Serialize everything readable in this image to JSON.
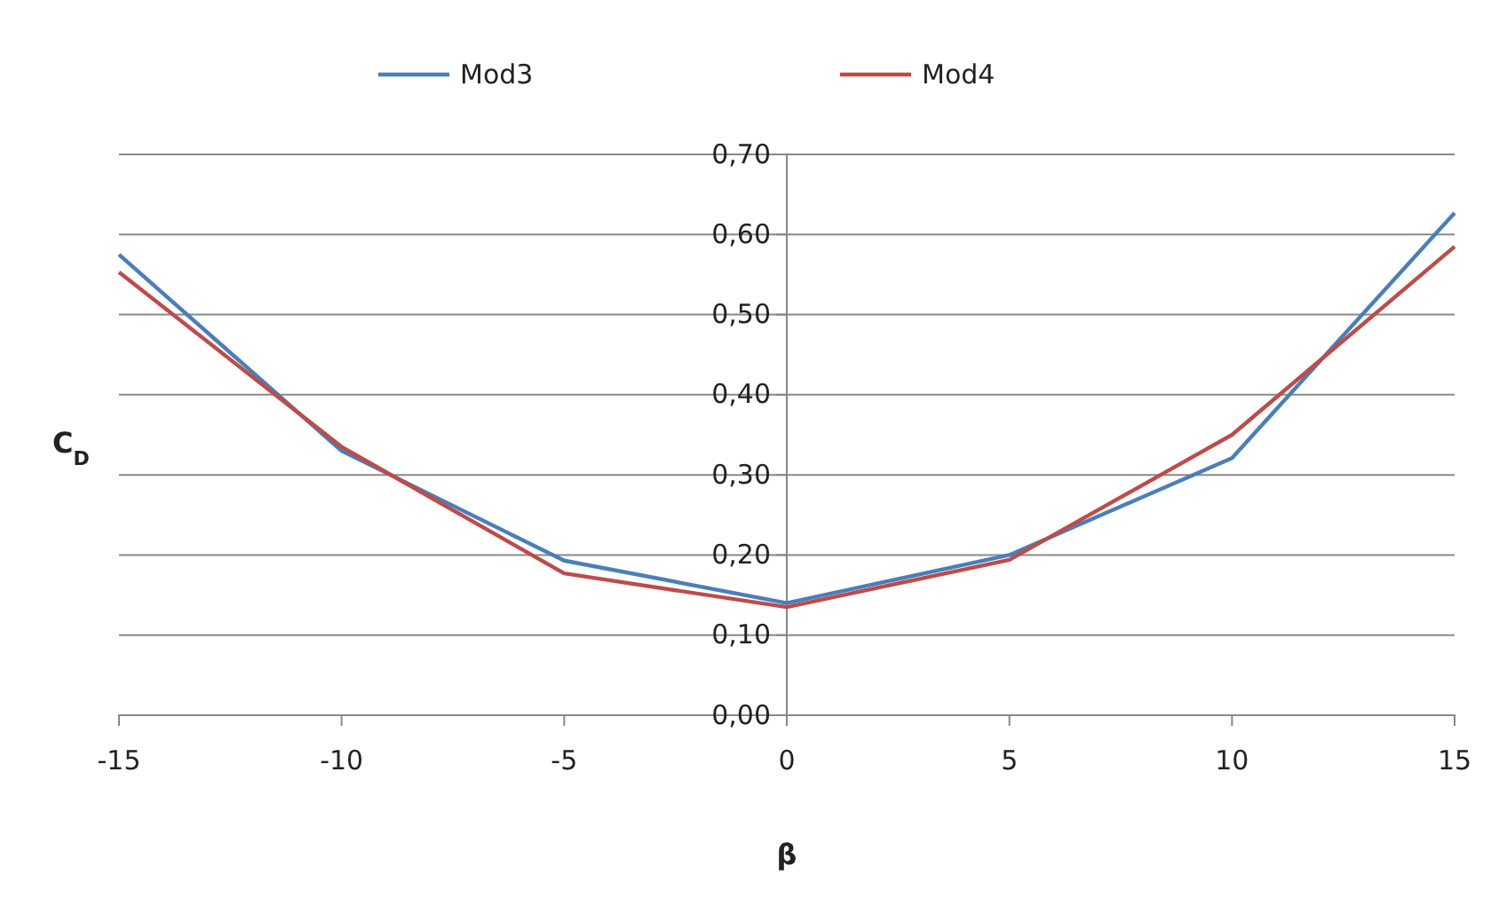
{
  "chart_data": {
    "type": "line",
    "xlabel": "β",
    "ylabel": "C$_{D}$",
    "x": [
      -15,
      -10,
      -5,
      0,
      5,
      10,
      15
    ],
    "series": [
      {
        "name": "Mod3",
        "color": "#4a7ebb",
        "values": [
          0.575,
          0.33,
          0.193,
          0.14,
          0.2,
          0.321,
          0.627
        ]
      },
      {
        "name": "Mod4",
        "color": "#be4b48",
        "values": [
          0.553,
          0.335,
          0.177,
          0.135,
          0.194,
          0.35,
          0.585
        ]
      }
    ],
    "xlim": [
      -15,
      15
    ],
    "xticks": [
      -15,
      -10,
      -5,
      0,
      5,
      10,
      15
    ],
    "ylim": [
      0,
      0.7
    ],
    "yticks": [
      {
        "value": 0,
        "label": "0,00"
      },
      {
        "value": 0.1,
        "label": "0,10"
      },
      {
        "value": 0.2,
        "label": "0,20"
      },
      {
        "value": 0.3,
        "label": "0,30"
      },
      {
        "value": 0.4,
        "label": "0,40"
      },
      {
        "value": 0.5,
        "label": "0,50"
      },
      {
        "value": 0.6,
        "label": "0,60"
      },
      {
        "value": 0.7,
        "label": "0,70"
      }
    ],
    "grid": "y",
    "legend": "top",
    "marker": "none",
    "line_style": "solid"
  }
}
